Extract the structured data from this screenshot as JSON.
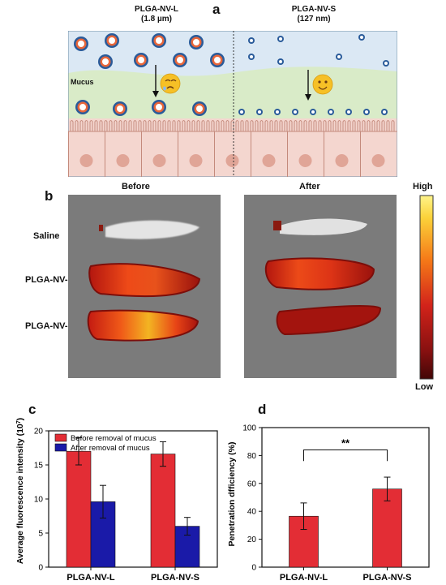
{
  "panel_a": {
    "letter": "a",
    "left_title": "PLGA-NV-L",
    "left_size": "(1.8 µm)",
    "right_title": "PLGA-NV-S",
    "right_size": "(127 nm)",
    "mucus_label": "Mucus",
    "colors": {
      "lumen": "#dbe8f4",
      "mucus": "#d9ebc8",
      "tissue": "#f4d6cf",
      "nucleus": "#e0a597",
      "particle_ring": "#e8663a",
      "particle_core": "#2a5b9a"
    }
  },
  "panel_b": {
    "letter": "b",
    "before_label": "Before",
    "after_label": "After",
    "rows": [
      "Saline",
      "PLGA-NV-S",
      "PLGA-NV-L"
    ],
    "scale_high": "High",
    "scale_low": "Low"
  },
  "chart_data": [
    {
      "panel": "c",
      "type": "bar",
      "categories": [
        "PLGA-NV-L",
        "PLGA-NV-S"
      ],
      "series": [
        {
          "name": "Before removal of mucus",
          "values": [
            17.0,
            16.6
          ],
          "errors": [
            2.0,
            1.8
          ],
          "color": "#e32d35"
        },
        {
          "name": "After removal of mucus",
          "values": [
            9.6,
            6.0
          ],
          "errors": [
            2.4,
            1.3
          ],
          "color": "#1a1aa8"
        }
      ],
      "xlabel": "",
      "ylabel": "Average fluorescence intensity (10",
      "ylabel_sup": "7",
      "ylabel_tail": ")",
      "ylim": [
        0,
        20
      ],
      "yticks": [
        "0",
        "5",
        "10",
        "15",
        "20"
      ],
      "legend": "top-right",
      "grid": false
    },
    {
      "panel": "d",
      "type": "bar",
      "categories": [
        "PLGA-NV-L",
        "PLGA-NV-S"
      ],
      "series": [
        {
          "values": [
            36.5,
            56.0
          ],
          "errors": [
            9.5,
            8.5
          ],
          "color": "#e32d35"
        }
      ],
      "xlabel": "",
      "ylabel": "Penetration dfficiency (%)",
      "ylim": [
        0,
        100
      ],
      "yticks": [
        "0",
        "20",
        "40",
        "60",
        "80",
        "100"
      ],
      "annotation": "**",
      "grid": false
    }
  ]
}
